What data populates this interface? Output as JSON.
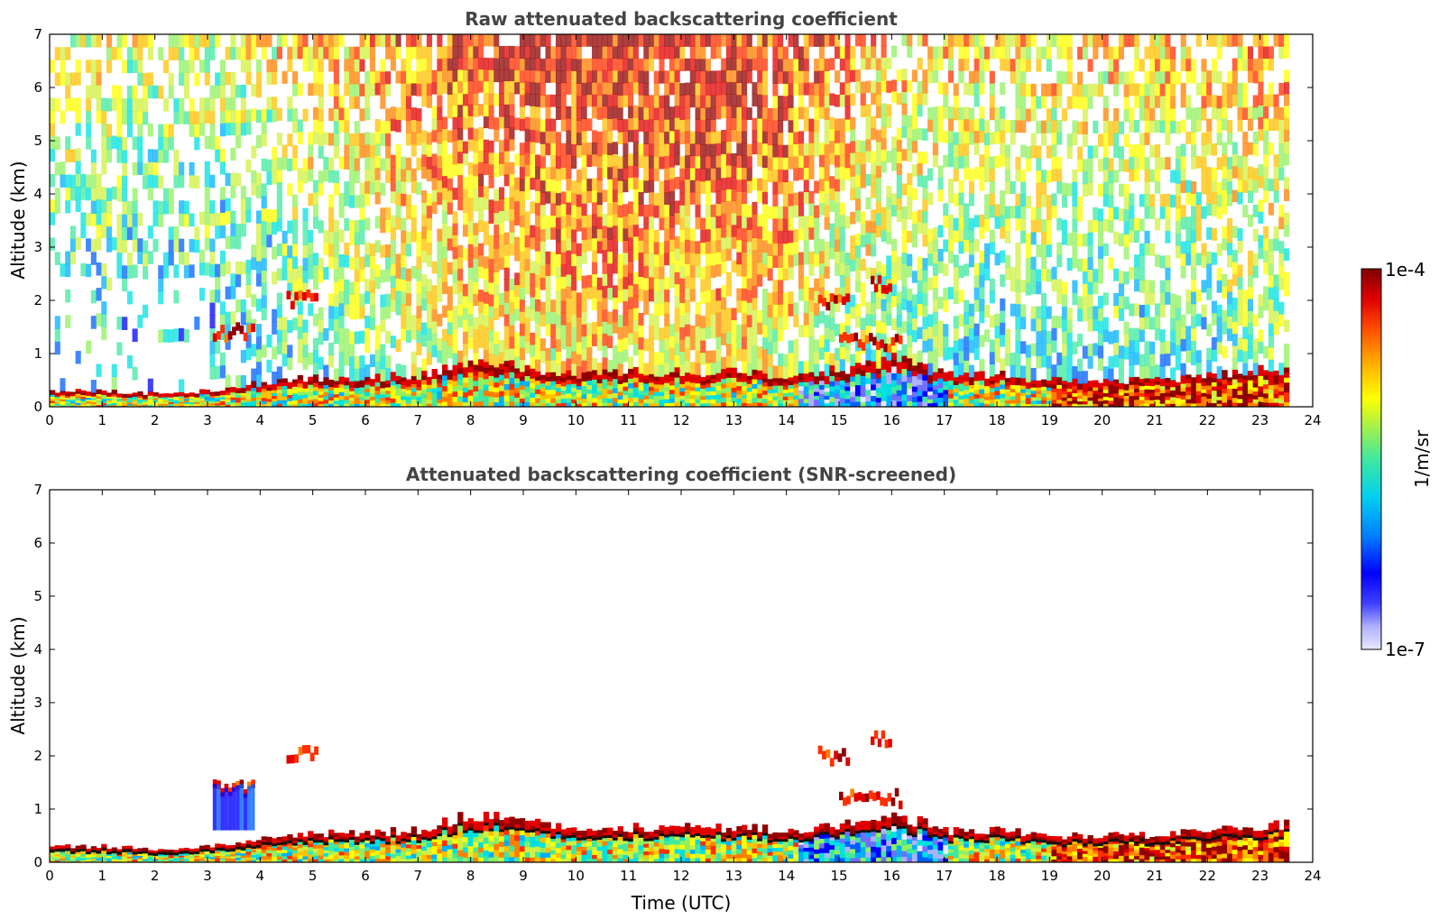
{
  "chart_data": [
    {
      "type": "heatmap",
      "title": "Raw attenuated backscattering coefficient",
      "xlabel": "",
      "ylabel": "Altitude (km)",
      "xlim": [
        0,
        24
      ],
      "ylim": [
        0,
        7
      ],
      "x_ticks": [
        "0",
        "1",
        "2",
        "3",
        "4",
        "5",
        "6",
        "7",
        "8",
        "9",
        "10",
        "11",
        "12",
        "13",
        "14",
        "15",
        "16",
        "17",
        "18",
        "19",
        "20",
        "21",
        "22",
        "23",
        "24"
      ],
      "y_ticks": [
        "0",
        "1",
        "2",
        "3",
        "4",
        "5",
        "6",
        "7"
      ],
      "data_end_hour": 23.55,
      "features": {
        "boundary_layer_top_km": [
          0.3,
          0.3,
          0.25,
          0.3,
          0.45,
          0.55,
          0.55,
          0.6,
          0.9,
          0.75,
          0.6,
          0.65,
          0.65,
          0.65,
          0.6,
          0.7,
          0.9,
          0.6,
          0.6,
          0.5,
          0.5,
          0.5,
          0.6,
          0.7
        ],
        "sky_noise_level": [
          0.35,
          0.35,
          0.3,
          0.3,
          0.35,
          0.45,
          0.55,
          0.7,
          0.8,
          0.85,
          0.88,
          0.88,
          0.88,
          0.85,
          0.78,
          0.65,
          0.5,
          0.45,
          0.45,
          0.45,
          0.45,
          0.45,
          0.48,
          0.55
        ],
        "elevated_layers": [
          {
            "start": 3.1,
            "end": 3.9,
            "alt_km": 1.4
          },
          {
            "start": 4.5,
            "end": 5.1,
            "alt_km": 2.0
          },
          {
            "start": 14.6,
            "end": 15.2,
            "alt_km": 2.0
          },
          {
            "start": 15.6,
            "end": 16.0,
            "alt_km": 2.3
          },
          {
            "start": 15.0,
            "end": 16.2,
            "alt_km": 1.2
          }
        ]
      }
    },
    {
      "type": "heatmap",
      "title": "Attenuated backscattering coefficient (SNR-screened)",
      "xlabel": "Time (UTC)",
      "ylabel": "Altitude (km)",
      "xlim": [
        0,
        24
      ],
      "ylim": [
        0,
        7
      ],
      "x_ticks": [
        "0",
        "1",
        "2",
        "3",
        "4",
        "5",
        "6",
        "7",
        "8",
        "9",
        "10",
        "11",
        "12",
        "13",
        "14",
        "15",
        "16",
        "17",
        "18",
        "19",
        "20",
        "21",
        "22",
        "23",
        "24"
      ],
      "y_ticks": [
        "0",
        "1",
        "2",
        "3",
        "4",
        "5",
        "6",
        "7"
      ],
      "data_end_hour": 23.55
    }
  ],
  "colorbar": {
    "min_label": "1e-7",
    "max_label": "1e-4",
    "unit_label": "1/m/sr",
    "colors": [
      "#e8e8ff",
      "#b0b0ff",
      "#7070ff",
      "#0000ff",
      "#0060ff",
      "#00b0ff",
      "#00e0e0",
      "#40e8a0",
      "#90f060",
      "#d0f040",
      "#ffff00",
      "#ffc000",
      "#ff8000",
      "#ff3000",
      "#e00000",
      "#900000"
    ]
  }
}
